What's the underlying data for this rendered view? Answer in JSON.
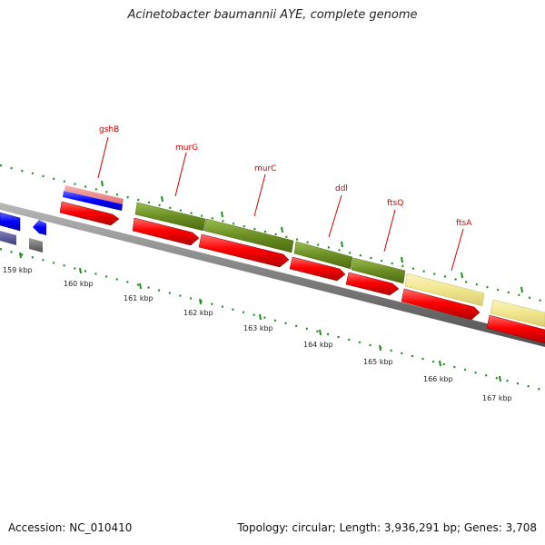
{
  "title": "Acinetobacter baumannii AYE, complete genome",
  "footer": {
    "accession": "Accession: NC_010410",
    "summary": "Topology: circular; Length: 3,936,291 bp; Genes: 3,708"
  },
  "gene_labels": [
    {
      "name": "gshB"
    },
    {
      "name": "murG"
    },
    {
      "name": "murC"
    },
    {
      "name": "ddl"
    },
    {
      "name": "ftsQ"
    },
    {
      "name": "ftsA"
    }
  ],
  "kbp_ticks": [
    "159 kbp",
    "160 kbp",
    "161 kbp",
    "162 kbp",
    "163 kbp",
    "164 kbp",
    "165 kbp",
    "166 kbp",
    "167 kbp"
  ],
  "colors": {
    "backbone": "#808080",
    "cds": "#ff0000",
    "gene_olive": "#6b8e23",
    "gene_khaki": "#f0e68c",
    "gene_blue": "#0000ff",
    "gene_pink": "#f08080",
    "gene_slate": "#5a5a9a",
    "gene_gray": "#707070",
    "tick": "#228b22",
    "label": "#d40000"
  }
}
